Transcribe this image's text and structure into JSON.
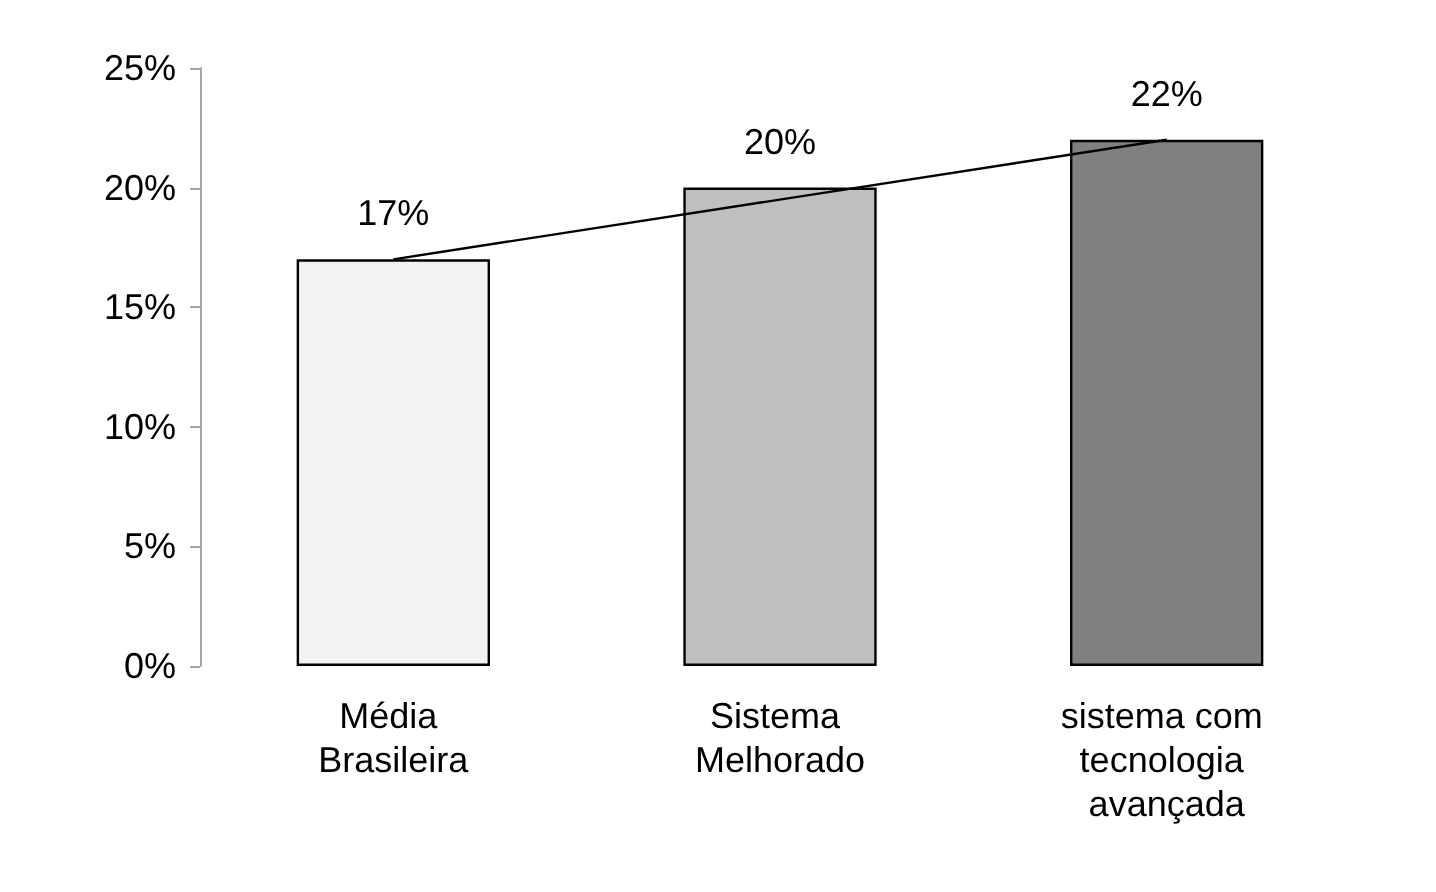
{
  "chart_data": {
    "type": "bar",
    "categories": [
      "Média Brasileira",
      "Sistema Melhorado",
      "sistema com tecnologia avançada"
    ],
    "series": [
      {
        "values": [
          17,
          20,
          22
        ],
        "colors": [
          "#f2f2f2",
          "#bfbfbf",
          "#808080"
        ]
      },
      {
        "type": "line",
        "x": [
          "Média Brasileira",
          "sistema com tecnologia avançada"
        ],
        "values": [
          17,
          22
        ],
        "color": "#000000"
      }
    ],
    "ylim": [
      0,
      25
    ],
    "yticks": [
      {
        "value": 0,
        "label": "0%"
      },
      {
        "value": 5,
        "label": "5%"
      },
      {
        "value": 10,
        "label": "10%"
      },
      {
        "value": 15,
        "label": "15%"
      },
      {
        "value": 20,
        "label": "20%"
      },
      {
        "value": 25,
        "label": "25%"
      }
    ],
    "value_labels": [
      "17%",
      "20%",
      "22%"
    ],
    "grid": false,
    "marker": "none"
  }
}
